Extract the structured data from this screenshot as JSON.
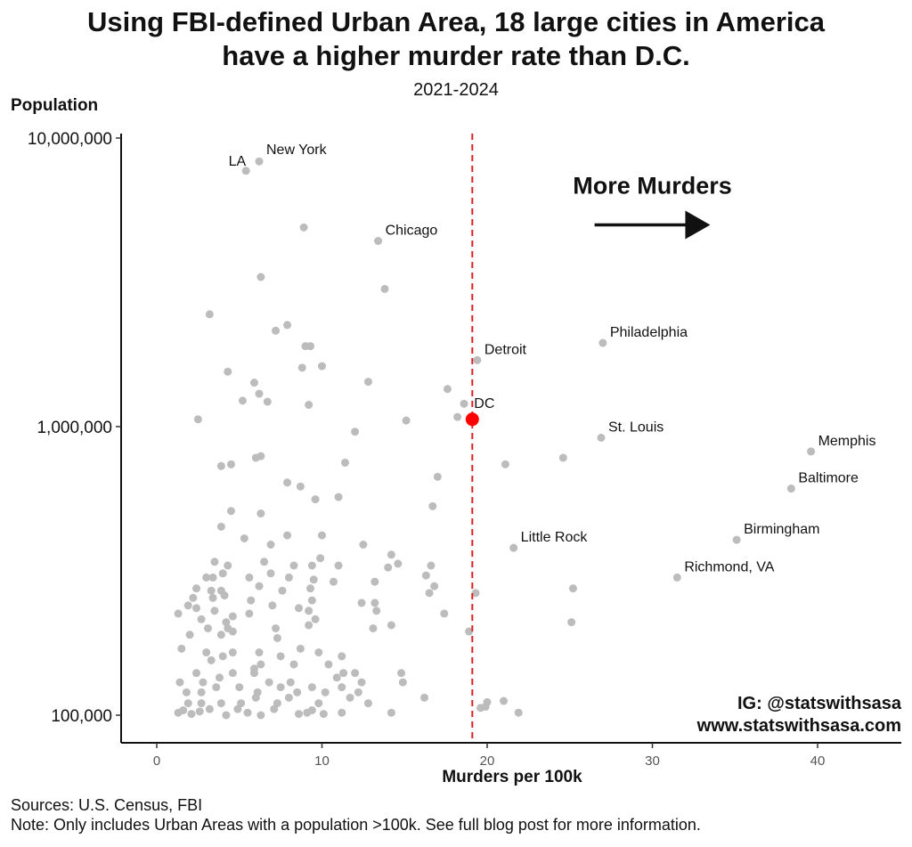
{
  "chart_data": {
    "type": "scatter",
    "title_line1": "Using FBI-defined Urban Area, 18 large cities in America",
    "title_line2": "have a higher murder rate than D.C.",
    "subtitle": "2021-2024",
    "xlabel": "Murders per 100k",
    "ylabel": "Population",
    "y_scale": "log",
    "xlim": [
      -2,
      45
    ],
    "ylim": [
      80000,
      10000000
    ],
    "x_ticks": [
      0,
      10,
      20,
      30,
      40
    ],
    "x_tick_labels": [
      "0",
      "10",
      "20",
      "30",
      "40"
    ],
    "y_ticks": [
      100000,
      1000000,
      10000000
    ],
    "y_tick_labels": [
      "100,000",
      "1,000,000",
      "10,000,000"
    ],
    "reference_line": {
      "x": 19.1,
      "style": "dashed",
      "color": "#e02020"
    },
    "arrow_annotation": {
      "label": "More Murders",
      "from_x": 26.5,
      "to_x": 33.5,
      "y": 5000000
    },
    "highlight_point": {
      "label": "DC",
      "x": 19.1,
      "y": 1060000,
      "color": "#ff0000"
    },
    "labeled_points": [
      {
        "label": "LA",
        "x": 5.4,
        "y": 7700000
      },
      {
        "label": "New York",
        "x": 6.2,
        "y": 8300000
      },
      {
        "label": "Chicago",
        "x": 13.4,
        "y": 4400000
      },
      {
        "label": "Detroit",
        "x": 19.4,
        "y": 1700000
      },
      {
        "label": "Philadelphia",
        "x": 27.0,
        "y": 1950000
      },
      {
        "label": "St. Louis",
        "x": 26.9,
        "y": 915000
      },
      {
        "label": "Memphis",
        "x": 39.6,
        "y": 820000
      },
      {
        "label": "Baltimore",
        "x": 38.4,
        "y": 610000
      },
      {
        "label": "Little Rock",
        "x": 21.6,
        "y": 380000
      },
      {
        "label": "Birmingham",
        "x": 35.1,
        "y": 405000
      },
      {
        "label": "Richmond, VA",
        "x": 31.5,
        "y": 300000
      }
    ],
    "other_points": [
      [
        8.9,
        4900000
      ],
      [
        6.3,
        3300000
      ],
      [
        13.8,
        3000000
      ],
      [
        3.2,
        2450000
      ],
      [
        7.9,
        2250000
      ],
      [
        7.2,
        2150000
      ],
      [
        9.0,
        1900000
      ],
      [
        9.3,
        1900000
      ],
      [
        4.3,
        1550000
      ],
      [
        8.8,
        1600000
      ],
      [
        10.0,
        1620000
      ],
      [
        12.8,
        1430000
      ],
      [
        5.9,
        1420000
      ],
      [
        6.2,
        1300000
      ],
      [
        5.2,
        1230000
      ],
      [
        6.7,
        1220000
      ],
      [
        9.2,
        1190000
      ],
      [
        17.6,
        1350000
      ],
      [
        18.6,
        1200000
      ],
      [
        18.2,
        1080000
      ],
      [
        2.5,
        1060000
      ],
      [
        15.1,
        1050000
      ],
      [
        12.0,
        960000
      ],
      [
        6.0,
        780000
      ],
      [
        6.3,
        790000
      ],
      [
        4.5,
        740000
      ],
      [
        3.9,
        730000
      ],
      [
        11.4,
        750000
      ],
      [
        21.1,
        740000
      ],
      [
        24.6,
        780000
      ],
      [
        17.0,
        670000
      ],
      [
        7.9,
        640000
      ],
      [
        8.7,
        620000
      ],
      [
        11.0,
        570000
      ],
      [
        9.6,
        560000
      ],
      [
        16.7,
        530000
      ],
      [
        4.5,
        510000
      ],
      [
        6.3,
        500000
      ],
      [
        3.9,
        450000
      ],
      [
        5.3,
        410000
      ],
      [
        7.9,
        420000
      ],
      [
        10.0,
        420000
      ],
      [
        6.9,
        390000
      ],
      [
        12.5,
        390000
      ],
      [
        14.2,
        360000
      ],
      [
        9.9,
        350000
      ],
      [
        3.5,
        340000
      ],
      [
        4.3,
        330000
      ],
      [
        6.5,
        340000
      ],
      [
        8.3,
        330000
      ],
      [
        9.4,
        330000
      ],
      [
        11.0,
        330000
      ],
      [
        14.0,
        325000
      ],
      [
        14.6,
        335000
      ],
      [
        16.6,
        330000
      ],
      [
        3.0,
        300000
      ],
      [
        3.4,
        300000
      ],
      [
        4.0,
        310000
      ],
      [
        5.6,
        300000
      ],
      [
        6.9,
        310000
      ],
      [
        8.0,
        300000
      ],
      [
        9.5,
        295000
      ],
      [
        10.7,
        290000
      ],
      [
        13.2,
        290000
      ],
      [
        16.3,
        305000
      ],
      [
        2.4,
        275000
      ],
      [
        3.3,
        270000
      ],
      [
        3.9,
        270000
      ],
      [
        6.2,
        280000
      ],
      [
        7.6,
        270000
      ],
      [
        9.3,
        275000
      ],
      [
        16.8,
        280000
      ],
      [
        16.5,
        265000
      ],
      [
        19.3,
        265000
      ],
      [
        25.2,
        275000
      ],
      [
        2.2,
        255000
      ],
      [
        3.4,
        255000
      ],
      [
        4.1,
        260000
      ],
      [
        5.7,
        250000
      ],
      [
        9.4,
        250000
      ],
      [
        12.4,
        245000
      ],
      [
        13.2,
        245000
      ],
      [
        1.9,
        240000
      ],
      [
        2.4,
        235000
      ],
      [
        3.5,
        230000
      ],
      [
        5.6,
        225000
      ],
      [
        7.0,
        240000
      ],
      [
        8.6,
        235000
      ],
      [
        9.2,
        230000
      ],
      [
        13.3,
        230000
      ],
      [
        17.4,
        225000
      ],
      [
        1.3,
        225000
      ],
      [
        2.7,
        215000
      ],
      [
        4.2,
        210000
      ],
      [
        4.6,
        220000
      ],
      [
        9.6,
        215000
      ],
      [
        13.1,
        200000
      ],
      [
        14.2,
        205000
      ],
      [
        25.1,
        210000
      ],
      [
        3.1,
        200000
      ],
      [
        4.3,
        200000
      ],
      [
        7.2,
        200000
      ],
      [
        9.2,
        205000
      ],
      [
        18.9,
        195000
      ],
      [
        2.0,
        190000
      ],
      [
        3.9,
        190000
      ],
      [
        4.6,
        195000
      ],
      [
        7.3,
        185000
      ],
      [
        1.5,
        170000
      ],
      [
        3.0,
        165000
      ],
      [
        4.6,
        165000
      ],
      [
        4.0,
        160000
      ],
      [
        6.2,
        165000
      ],
      [
        7.5,
        160000
      ],
      [
        8.7,
        170000
      ],
      [
        9.8,
        165000
      ],
      [
        10.4,
        150000
      ],
      [
        11.2,
        160000
      ],
      [
        3.3,
        155000
      ],
      [
        8.3,
        150000
      ],
      [
        12.0,
        140000
      ],
      [
        5.9,
        145000
      ],
      [
        6.3,
        150000
      ],
      [
        11.3,
        140000
      ],
      [
        14.8,
        140000
      ],
      [
        1.4,
        130000
      ],
      [
        2.4,
        140000
      ],
      [
        2.8,
        130000
      ],
      [
        3.8,
        135000
      ],
      [
        4.6,
        140000
      ],
      [
        5.9,
        140000
      ],
      [
        6.8,
        130000
      ],
      [
        8.1,
        130000
      ],
      [
        9.4,
        125000
      ],
      [
        10.9,
        135000
      ],
      [
        12.4,
        130000
      ],
      [
        14.9,
        130000
      ],
      [
        1.8,
        120000
      ],
      [
        2.7,
        120000
      ],
      [
        3.6,
        125000
      ],
      [
        5.0,
        125000
      ],
      [
        6.1,
        120000
      ],
      [
        7.5,
        125000
      ],
      [
        8.5,
        120000
      ],
      [
        10.2,
        120000
      ],
      [
        11.2,
        125000
      ],
      [
        12.2,
        120000
      ],
      [
        1.9,
        110000
      ],
      [
        2.7,
        110000
      ],
      [
        3.9,
        110000
      ],
      [
        5.1,
        110000
      ],
      [
        6.0,
        115000
      ],
      [
        7.3,
        110000
      ],
      [
        8.0,
        115000
      ],
      [
        9.8,
        110000
      ],
      [
        11.7,
        115000
      ],
      [
        12.8,
        110000
      ],
      [
        16.2,
        115000
      ],
      [
        3.2,
        105000
      ],
      [
        4.9,
        105000
      ],
      [
        7.1,
        105000
      ],
      [
        9.4,
        104000
      ],
      [
        14.2,
        102000
      ],
      [
        1.3,
        102000
      ],
      [
        1.6,
        104000
      ],
      [
        2.1,
        101000
      ],
      [
        2.6,
        103000
      ],
      [
        4.2,
        100000
      ],
      [
        5.5,
        102000
      ],
      [
        6.3,
        100000
      ],
      [
        8.6,
        101000
      ],
      [
        9.1,
        102000
      ],
      [
        10.1,
        101000
      ],
      [
        11.2,
        102000
      ],
      [
        19.6,
        106000
      ],
      [
        19.9,
        107000
      ],
      [
        20.0,
        111000
      ],
      [
        21.0,
        112000
      ],
      [
        21.9,
        102000
      ]
    ]
  },
  "watermark_line1": "IG: @statswithsasa",
  "watermark_line2": "www.statswithsasa.com",
  "footnote_sources": "Sources: U.S. Census, FBI",
  "footnote_note": "Note: Only includes Urban Areas with a population >100k. See full blog post for more information.",
  "colors": {
    "point": "#bcbcbc",
    "highlight": "#ff0000",
    "reference_line": "#e02020"
  }
}
